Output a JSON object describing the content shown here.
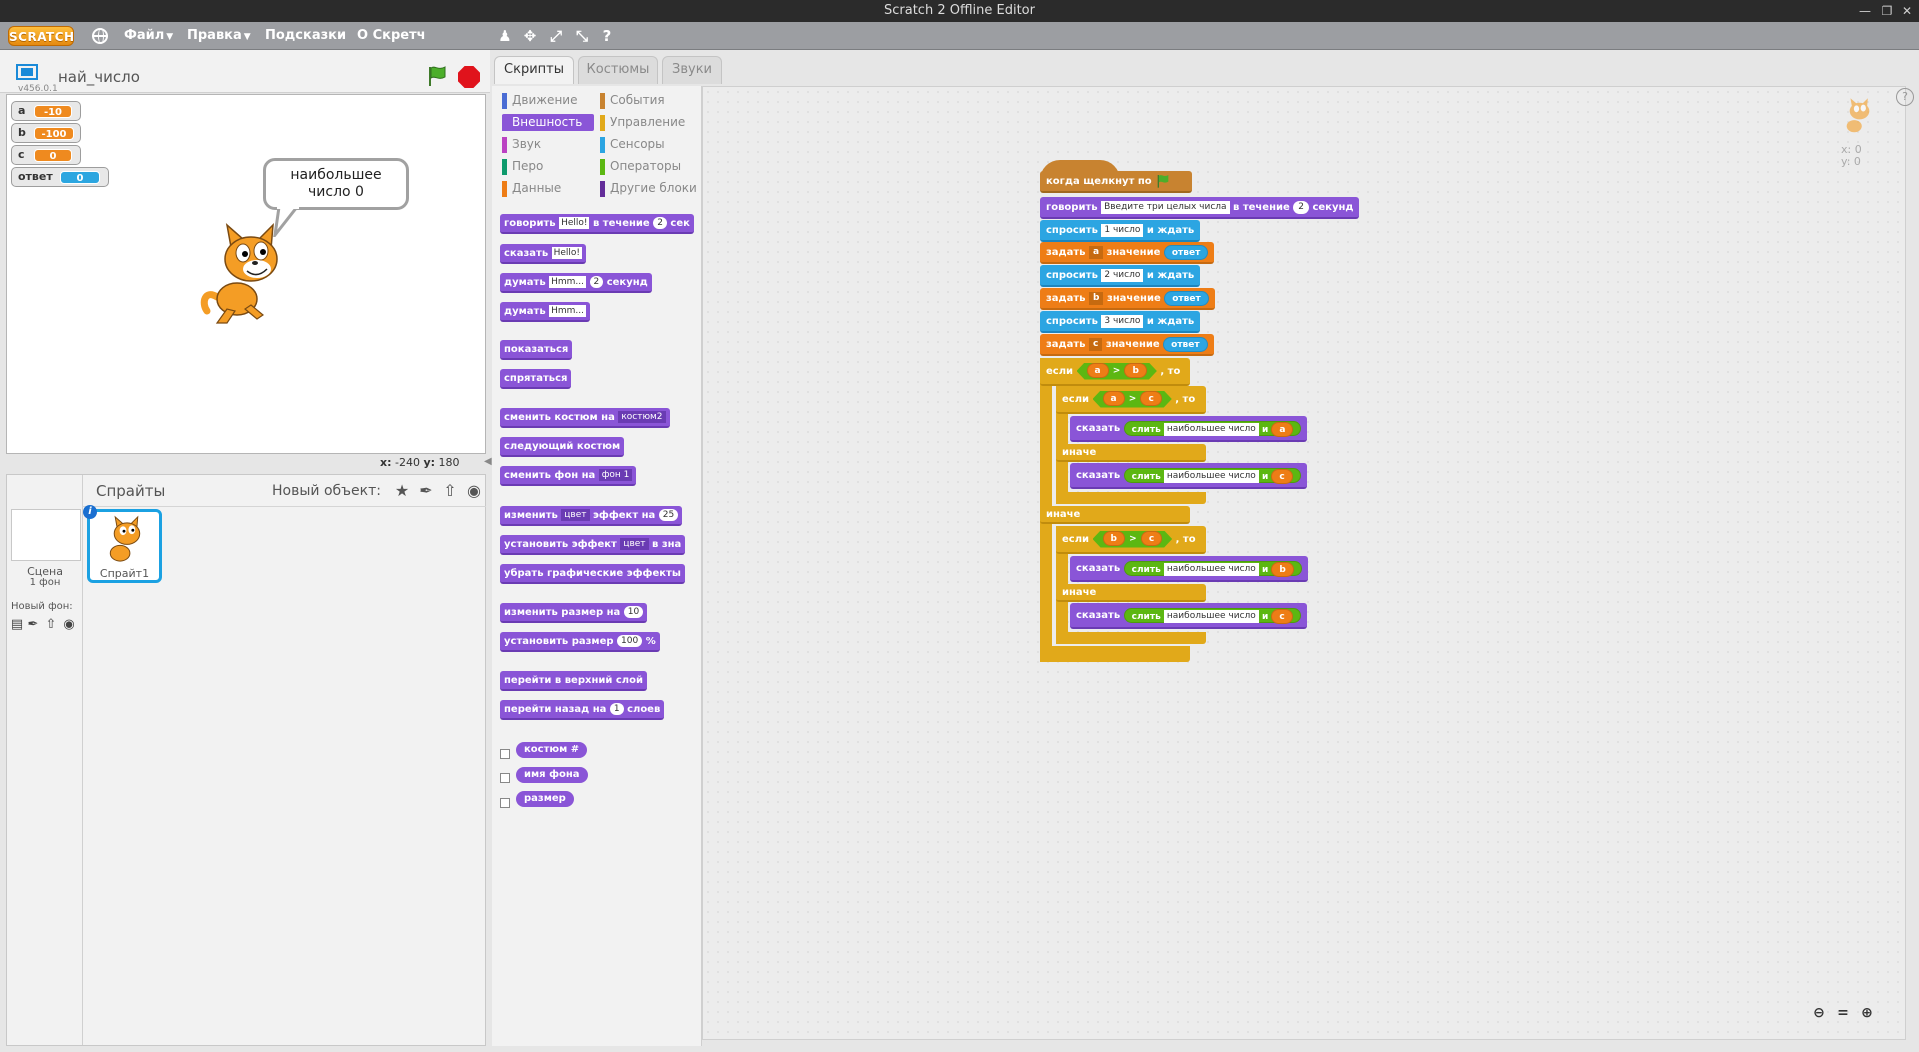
{
  "window": {
    "title": "Scratch 2 Offline Editor"
  },
  "menubar": {
    "logo": "SCRATCH",
    "file": "Файл",
    "edit": "Правка",
    "tips": "Подсказки",
    "about": "О Скретч"
  },
  "stage": {
    "version": "v456.0.1",
    "project_title": "най_число",
    "monitors": [
      {
        "label": "a",
        "value": "-10"
      },
      {
        "label": "b",
        "value": "-100"
      },
      {
        "label": "c",
        "value": "0"
      },
      {
        "label": "ответ",
        "value": "0"
      }
    ],
    "speech_line1": "наибольшее",
    "speech_line2": "число  0",
    "coords_x_label": "x:",
    "coords_x": "-240",
    "coords_y_label": "y:",
    "coords_y": "180"
  },
  "sprites": {
    "title": "Спрайты",
    "new_object": "Новый объект:",
    "scene_label": "Сцена",
    "scene_sub": "1 фон",
    "new_backdrop": "Новый фон:",
    "sprite1": "Спрайт1"
  },
  "tabs": [
    "Скрипты",
    "Костюмы",
    "Звуки"
  ],
  "categories": [
    {
      "name": "Движение",
      "color": "#4a6cd4"
    },
    {
      "name": "События",
      "color": "#c88330"
    },
    {
      "name": "Внешность",
      "color": "#8a55d7"
    },
    {
      "name": "Управление",
      "color": "#e1a91a"
    },
    {
      "name": "Звук",
      "color": "#bb42c3"
    },
    {
      "name": "Сенсоры",
      "color": "#2ca5e2"
    },
    {
      "name": "Перо",
      "color": "#0e9a6c"
    },
    {
      "name": "Операторы",
      "color": "#5cb712"
    },
    {
      "name": "Данные",
      "color": "#ee7d16"
    },
    {
      "name": "Другие блоки",
      "color": "#632d99"
    }
  ],
  "palette": {
    "say_for_a": "говорить",
    "say_for_val": "Hello!",
    "say_for_b": "в течение",
    "say_for_num": "2",
    "say_for_c": "сек",
    "say_a": "сказать",
    "say_val": "Hello!",
    "think_for_a": "думать",
    "think_for_val": "Hmm...",
    "think_for_num": "2",
    "think_for_c": "секунд",
    "think_a": "думать",
    "think_val": "Hmm...",
    "show": "показаться",
    "hide": "спрятаться",
    "switch_costume": "сменить костюм на",
    "switch_costume_val": "костюм2",
    "next_costume": "следующий костюм",
    "switch_backdrop": "сменить фон на",
    "switch_backdrop_val": "фон 1",
    "change_effect_a": "изменить",
    "change_effect_val": "цвет",
    "change_effect_b": "эффект на",
    "change_effect_num": "25",
    "set_effect_a": "установить эффект",
    "set_effect_val": "цвет",
    "set_effect_b": "в зна",
    "clear_effects": "убрать графические эффекты",
    "change_size_a": "изменить размер на",
    "change_size_num": "10",
    "set_size_a": "установить размер",
    "set_size_num": "100",
    "set_size_b": "%",
    "front": "перейти в верхний слой",
    "back_a": "перейти назад на",
    "back_num": "1",
    "back_b": "слоев",
    "rep_costume": "костюм #",
    "rep_backdrop": "имя фона",
    "rep_size": "размер"
  },
  "script": {
    "hat": "когда щелкнут по",
    "say_for_a": "говорить",
    "say_for_val": "Введите три целых числа",
    "say_for_b": "в течение",
    "say_for_num": "2",
    "say_for_c": "секунд",
    "ask1_a": "спросить",
    "ask1_val": "1 число",
    "ask1_b": "и ждать",
    "set_a_a": "задать",
    "set_a_var": "a",
    "set_a_b": "значение",
    "set_a_rep": "ответ",
    "ask2_a": "спросить",
    "ask2_val": "2 число",
    "ask2_b": "и ждать",
    "set_b_a": "задать",
    "set_b_var": "b",
    "set_b_b": "значение",
    "set_b_rep": "ответ",
    "ask3_a": "спросить",
    "ask3_val": "3 число",
    "ask3_b": "и ждать",
    "set_c_a": "задать",
    "set_c_var": "c",
    "set_c_b": "значение",
    "set_c_rep": "ответ",
    "if1_a": "если",
    "if1_l": "a",
    "if1_op": ">",
    "if1_r": "b",
    "if1_b": ", то",
    "if2_a": "если",
    "if2_l": "a",
    "if2_op": ">",
    "if2_r": "c",
    "if2_b": ", то",
    "say1_a": "сказать",
    "say1_join": "слить",
    "say1_val": "наибольшее число",
    "say1_and": "и",
    "say1_var": "a",
    "else2": "иначе",
    "say2_a": "сказать",
    "say2_join": "слить",
    "say2_val": "наибольшее число",
    "say2_and": "и",
    "say2_var": "c",
    "else1": "иначе",
    "if3_a": "если",
    "if3_l": "b",
    "if3_op": ">",
    "if3_r": "c",
    "if3_b": ", то",
    "say3_a": "сказать",
    "say3_join": "слить",
    "say3_val": "наибольшее число",
    "say3_and": "и",
    "say3_var": "b",
    "else3": "иначе",
    "say4_a": "сказать",
    "say4_join": "слить",
    "say4_val": "наибольшее число",
    "say4_and": "и",
    "say4_var": "c"
  },
  "script_area": {
    "x_label": "x: 0",
    "y_label": "y: 0"
  }
}
